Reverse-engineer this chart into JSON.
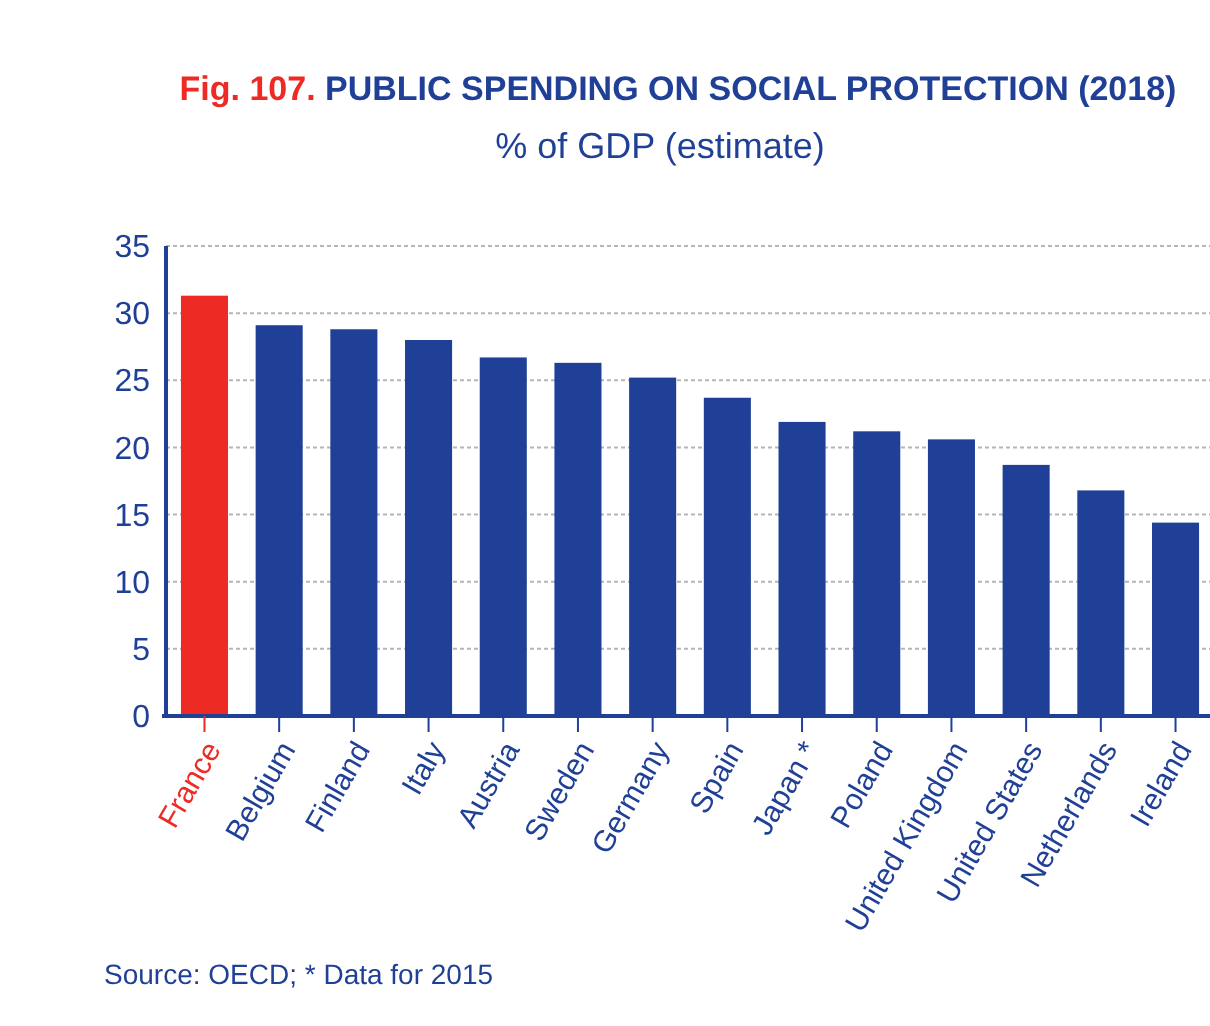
{
  "chart_data": {
    "type": "bar",
    "title": "Fig. 107. PUBLIC SPENDING ON SOCIAL PROTECTION (2018)",
    "subtitle": "% of GDP (estimate)",
    "categories": [
      "France",
      "Belgium",
      "Finland",
      "Italy",
      "Austria",
      "Sweden",
      "Germany",
      "Spain",
      "Japan *",
      "Poland",
      "United Kingdom",
      "United States",
      "Netherlands",
      "Ireland"
    ],
    "values": [
      31.3,
      29.1,
      28.8,
      28.0,
      26.7,
      26.3,
      25.2,
      23.7,
      21.9,
      21.2,
      20.6,
      18.7,
      16.8,
      14.4
    ],
    "colors": [
      "#ee2a24",
      "#1f4096",
      "#1f4096",
      "#1f4096",
      "#1f4096",
      "#1f4096",
      "#1f4096",
      "#1f4096",
      "#1f4096",
      "#1f4096",
      "#1f4096",
      "#1f4096",
      "#1f4096",
      "#1f4096"
    ],
    "ylim": [
      0,
      35
    ],
    "yticks": [
      0,
      5,
      10,
      15,
      20,
      25,
      30,
      35
    ],
    "grid": "y",
    "annotations": [
      "Source: OECD; * Data for 2015"
    ]
  }
}
